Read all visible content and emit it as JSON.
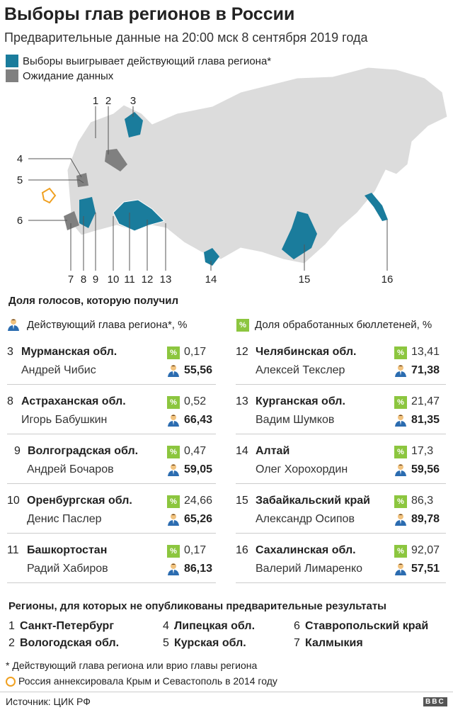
{
  "header": {
    "title": "Выборы глав регионов в России",
    "subtitle": "Предварительные данные на 20:00 мск 8 сентября 2019 года"
  },
  "legend": [
    "Выборы выигрывает действующий глава региона*",
    "Ожидание данных"
  ],
  "map": {
    "labels": [
      "1",
      "2",
      "3",
      "4",
      "5",
      "6",
      "7",
      "8",
      "9",
      "10",
      "11",
      "12",
      "13",
      "14",
      "15",
      "16"
    ]
  },
  "results": {
    "title": "Доля голосов, которую получил",
    "key_incumbent": "Действующий глава региона*, %",
    "key_processed": "Доля обработанных бюллетеней, %",
    "percent_icon": "%",
    "rows": [
      {
        "num": "3",
        "region": "Мурманская обл.",
        "candidate": "Андрей Чибис",
        "processed": "0,17",
        "vote": "55,56"
      },
      {
        "num": "8",
        "region": "Астраханская обл.",
        "candidate": "Игорь Бабушкин",
        "processed": "0,52",
        "vote": "66,43"
      },
      {
        "num": "9",
        "region": "Волгоградская обл.",
        "candidate": "Андрей Бочаров",
        "processed": "0,47",
        "vote": "59,05"
      },
      {
        "num": "10",
        "region": "Оренбургская обл.",
        "candidate": "Денис Паслер",
        "processed": "24,66",
        "vote": "65,26"
      },
      {
        "num": "11",
        "region": "Башкортостан",
        "candidate": "Радий Хабиров",
        "processed": "0,17",
        "vote": "86,13"
      },
      {
        "num": "12",
        "region": "Челябинская обл.",
        "candidate": "Алексей Текслер",
        "processed": "13,41",
        "vote": "71,38"
      },
      {
        "num": "13",
        "region": "Курганская обл.",
        "candidate": "Вадим Шумков",
        "processed": "21,47",
        "vote": "81,35"
      },
      {
        "num": "14",
        "region": "Алтай",
        "candidate": "Олег Хорохордин",
        "processed": "17,3",
        "vote": "59,56"
      },
      {
        "num": "15",
        "region": "Забайкальский край",
        "candidate": "Александр Осипов",
        "processed": "86,3",
        "vote": "89,78"
      },
      {
        "num": "16",
        "region": "Сахалинская обл.",
        "candidate": "Валерий Лимаренко",
        "processed": "92,07",
        "vote": "57,51"
      }
    ]
  },
  "pending": {
    "title": "Регионы, для которых не опубликованы предварительные результаты",
    "items": [
      {
        "num": "1",
        "name": "Санкт-Петербург"
      },
      {
        "num": "2",
        "name": "Вологодская обл."
      },
      {
        "num": "4",
        "name": "Липецкая обл."
      },
      {
        "num": "5",
        "name": "Курская обл."
      },
      {
        "num": "6",
        "name": "Ставропольский край"
      },
      {
        "num": "7",
        "name": "Калмыкия"
      }
    ]
  },
  "footnotes": [
    "* Действующий глава региона или врио главы региона",
    "Россия аннексировала Крым и Севастополь в 2014 году"
  ],
  "source": "Источник: ЦИК РФ",
  "logo": "BBC"
}
